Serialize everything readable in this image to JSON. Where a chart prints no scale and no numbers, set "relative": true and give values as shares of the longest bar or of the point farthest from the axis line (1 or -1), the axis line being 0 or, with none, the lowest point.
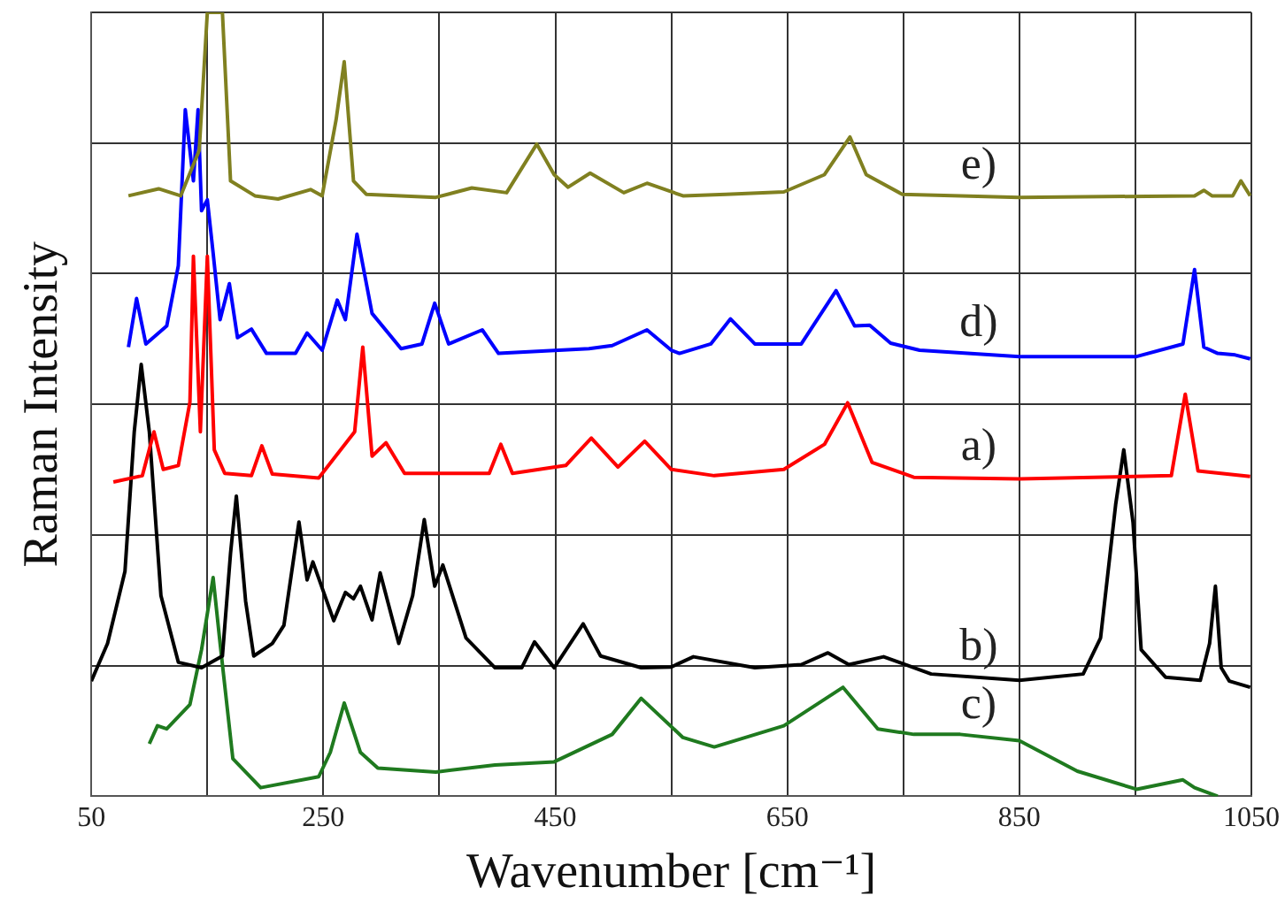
{
  "chart_data": {
    "type": "line",
    "xlabel": "Wavenumber [cm⁻¹]",
    "ylabel": "Raman Intensity",
    "relative": true,
    "grid": true,
    "legend": false,
    "marker": "none",
    "line_style": "solid",
    "xlim": [
      50,
      1050
    ],
    "xticks": [
      50,
      {
        "value": 150,
        "label": null
      },
      250,
      {
        "value": 350,
        "label": null
      },
      450,
      {
        "value": 550,
        "label": null
      },
      650,
      {
        "value": 750,
        "label": null
      },
      850,
      {
        "value": 950,
        "label": null
      },
      1050
    ],
    "series": [
      {
        "name": "e)",
        "color": "#808020",
        "x": [
          82,
          108,
          127,
          143,
          150,
          163,
          170,
          191,
          211,
          239,
          249,
          261,
          268,
          276,
          287,
          347,
          378,
          408,
          434,
          449,
          461,
          480,
          509,
          529,
          560,
          597,
          647,
          682,
          704,
          718,
          749,
          850,
          1001,
          1009,
          1016,
          1034,
          1041,
          1049
        ],
        "values": [
          0.766,
          0.775,
          0.766,
          0.824,
          1.0,
          1.0,
          0.785,
          0.766,
          0.762,
          0.774,
          0.766,
          0.863,
          0.937,
          0.785,
          0.768,
          0.764,
          0.776,
          0.77,
          0.832,
          0.793,
          0.777,
          0.795,
          0.77,
          0.782,
          0.766,
          0.768,
          0.771,
          0.793,
          0.841,
          0.793,
          0.768,
          0.764,
          0.766,
          0.773,
          0.766,
          0.766,
          0.785,
          0.766
        ]
      },
      {
        "name": "d)",
        "color": "#0000ff",
        "x": [
          82,
          89,
          97,
          115,
          125,
          131,
          138,
          142,
          145,
          150,
          155,
          161,
          169,
          176,
          188,
          201,
          226,
          236,
          249,
          262,
          269,
          279,
          292,
          317,
          335,
          346,
          358,
          387,
          401,
          479,
          499,
          529,
          550,
          557,
          584,
          601,
          622,
          662,
          692,
          708,
          721,
          739,
          764,
          850,
          951,
          991,
          1001,
          1009,
          1021,
          1036,
          1049
        ],
        "values": [
          0.573,
          0.635,
          0.577,
          0.6,
          0.677,
          0.876,
          0.785,
          0.876,
          0.747,
          0.761,
          0.693,
          0.608,
          0.654,
          0.585,
          0.596,
          0.565,
          0.565,
          0.591,
          0.569,
          0.633,
          0.608,
          0.717,
          0.616,
          0.571,
          0.577,
          0.629,
          0.577,
          0.595,
          0.565,
          0.571,
          0.575,
          0.595,
          0.569,
          0.565,
          0.577,
          0.609,
          0.577,
          0.577,
          0.645,
          0.6,
          0.601,
          0.578,
          0.569,
          0.561,
          0.561,
          0.577,
          0.672,
          0.573,
          0.565,
          0.563,
          0.558
        ]
      },
      {
        "name": "a)",
        "color": "#ff0000",
        "x": [
          69,
          94,
          104,
          112,
          125,
          135,
          138,
          144,
          150,
          156,
          165,
          188,
          197,
          206,
          246,
          277,
          284,
          292,
          304,
          320,
          393,
          403,
          413,
          459,
          481,
          504,
          527,
          550,
          587,
          647,
          682,
          702,
          723,
          759,
          850,
          981,
          993,
          1004,
          1049
        ],
        "values": [
          0.401,
          0.409,
          0.465,
          0.417,
          0.422,
          0.503,
          0.689,
          0.465,
          0.689,
          0.442,
          0.412,
          0.409,
          0.447,
          0.411,
          0.406,
          0.465,
          0.573,
          0.434,
          0.451,
          0.412,
          0.412,
          0.449,
          0.412,
          0.422,
          0.457,
          0.42,
          0.453,
          0.417,
          0.409,
          0.417,
          0.449,
          0.502,
          0.426,
          0.407,
          0.405,
          0.409,
          0.513,
          0.415,
          0.408
        ]
      },
      {
        "name": "b)",
        "color": "#000000",
        "x": [
          50,
          64,
          79,
          87,
          93,
          100,
          110,
          125,
          145,
          163,
          170,
          175,
          183,
          190,
          206,
          216,
          229,
          236,
          241,
          259,
          269,
          276,
          282,
          292,
          299,
          315,
          327,
          337,
          346,
          353,
          373,
          398,
          421,
          432,
          449,
          474,
          489,
          524,
          550,
          569,
          622,
          662,
          685,
          703,
          733,
          774,
          850,
          905,
          920,
          933,
          940,
          948,
          955,
          976,
          1006,
          1014,
          1019,
          1024,
          1031,
          1049
        ],
        "values": [
          0.147,
          0.195,
          0.287,
          0.465,
          0.551,
          0.465,
          0.256,
          0.171,
          0.164,
          0.179,
          0.31,
          0.383,
          0.249,
          0.179,
          0.195,
          0.218,
          0.35,
          0.276,
          0.299,
          0.224,
          0.26,
          0.252,
          0.268,
          0.225,
          0.285,
          0.195,
          0.256,
          0.353,
          0.268,
          0.295,
          0.202,
          0.164,
          0.164,
          0.197,
          0.164,
          0.22,
          0.179,
          0.164,
          0.165,
          0.178,
          0.164,
          0.168,
          0.183,
          0.168,
          0.178,
          0.156,
          0.148,
          0.156,
          0.202,
          0.372,
          0.442,
          0.349,
          0.187,
          0.152,
          0.148,
          0.195,
          0.268,
          0.164,
          0.147,
          0.139
        ]
      },
      {
        "name": "c)",
        "color": "#1f7a1f",
        "x": [
          100,
          107,
          115,
          135,
          145,
          155,
          161,
          172,
          196,
          246,
          256,
          268,
          282,
          297,
          347,
          398,
          449,
          499,
          524,
          560,
          587,
          647,
          698,
          728,
          759,
          799,
          850,
          900,
          951,
          991,
          1001,
          1021
        ],
        "values": [
          0.067,
          0.09,
          0.086,
          0.117,
          0.187,
          0.279,
          0.195,
          0.048,
          0.011,
          0.025,
          0.056,
          0.119,
          0.056,
          0.036,
          0.031,
          0.04,
          0.044,
          0.079,
          0.125,
          0.075,
          0.063,
          0.09,
          0.139,
          0.086,
          0.079,
          0.079,
          0.071,
          0.032,
          0.009,
          0.021,
          0.011,
          0
        ]
      }
    ]
  }
}
